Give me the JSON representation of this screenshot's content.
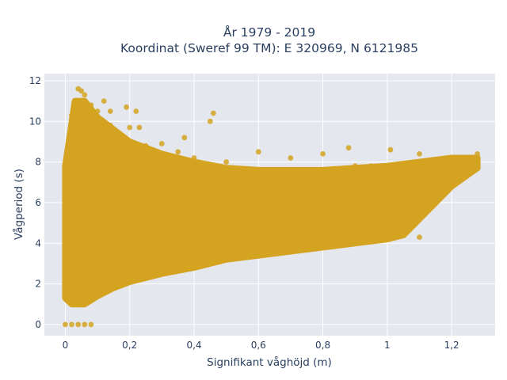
{
  "chart_data": {
    "type": "scatter",
    "title": "År 1979 - 2019",
    "subtitle": "Koordinat (Sweref 99 TM): E 320969, N 6121985",
    "xlabel": "Signifikant våghöjd (m)",
    "ylabel": "Vågperiod (s)",
    "xlim": [
      -0.065,
      1.335
    ],
    "ylim": [
      -0.55,
      12.35
    ],
    "x_ticks": [
      0,
      0.2,
      0.4,
      0.6,
      0.8,
      1,
      1.2
    ],
    "x_tick_labels": [
      "0",
      "0,2",
      "0,4",
      "0,6",
      "0,8",
      "1",
      "1,2"
    ],
    "y_ticks": [
      0,
      2,
      4,
      6,
      8,
      10,
      12
    ],
    "y_tick_labels": [
      "0",
      "2",
      "4",
      "6",
      "8",
      "10",
      "12"
    ],
    "grid": true,
    "legend": "none",
    "marker_color": "#d4a320",
    "plot_background": "#e5e7ef",
    "series": [
      {
        "points": [
          [
            0.0,
            0.0
          ],
          [
            0.02,
            0.0
          ],
          [
            0.04,
            0.0
          ],
          [
            0.06,
            0.0
          ],
          [
            0.08,
            0.0
          ],
          [
            0.0,
            1.4
          ],
          [
            0.0,
            2.0
          ],
          [
            0.0,
            3.1
          ],
          [
            0.0,
            4.1
          ],
          [
            0.0,
            5.0
          ],
          [
            0.0,
            6.2
          ],
          [
            0.0,
            7.0
          ],
          [
            0.0,
            7.7
          ],
          [
            0.02,
            1.0
          ],
          [
            0.02,
            2.5
          ],
          [
            0.02,
            4.0
          ],
          [
            0.02,
            5.5
          ],
          [
            0.02,
            7.0
          ],
          [
            0.02,
            8.5
          ],
          [
            0.02,
            9.5
          ],
          [
            0.02,
            10.3
          ],
          [
            0.04,
            1.2
          ],
          [
            0.04,
            3.0
          ],
          [
            0.04,
            5.0
          ],
          [
            0.04,
            7.0
          ],
          [
            0.04,
            9.0
          ],
          [
            0.04,
            10.5
          ],
          [
            0.04,
            11.6
          ],
          [
            0.05,
            11.5
          ],
          [
            0.06,
            11.3
          ],
          [
            0.06,
            1.1
          ],
          [
            0.06,
            3.5
          ],
          [
            0.06,
            6.0
          ],
          [
            0.06,
            8.5
          ],
          [
            0.06,
            10.0
          ],
          [
            0.08,
            1.3
          ],
          [
            0.08,
            4.0
          ],
          [
            0.08,
            6.5
          ],
          [
            0.08,
            9.5
          ],
          [
            0.08,
            10.8
          ],
          [
            0.1,
            1.6
          ],
          [
            0.1,
            3.5
          ],
          [
            0.1,
            5.5
          ],
          [
            0.1,
            7.5
          ],
          [
            0.1,
            9.5
          ],
          [
            0.1,
            10.5
          ],
          [
            0.12,
            11.0
          ],
          [
            0.14,
            1.8
          ],
          [
            0.14,
            4.0
          ],
          [
            0.14,
            6.0
          ],
          [
            0.14,
            8.0
          ],
          [
            0.14,
            9.8
          ],
          [
            0.14,
            10.5
          ],
          [
            0.16,
            2.0
          ],
          [
            0.16,
            5.0
          ],
          [
            0.16,
            7.5
          ],
          [
            0.16,
            9.3
          ],
          [
            0.19,
            10.7
          ],
          [
            0.2,
            2.2
          ],
          [
            0.2,
            4.5
          ],
          [
            0.2,
            6.5
          ],
          [
            0.2,
            8.6
          ],
          [
            0.2,
            9.7
          ],
          [
            0.22,
            10.5
          ],
          [
            0.23,
            9.7
          ],
          [
            0.25,
            2.4
          ],
          [
            0.25,
            5.0
          ],
          [
            0.25,
            7.5
          ],
          [
            0.25,
            8.8
          ],
          [
            0.3,
            2.6
          ],
          [
            0.3,
            4.0
          ],
          [
            0.3,
            6.0
          ],
          [
            0.3,
            8.0
          ],
          [
            0.3,
            8.9
          ],
          [
            0.35,
            2.8
          ],
          [
            0.35,
            5.0
          ],
          [
            0.35,
            7.0
          ],
          [
            0.35,
            8.5
          ],
          [
            0.4,
            3.0
          ],
          [
            0.4,
            4.5
          ],
          [
            0.4,
            6.5
          ],
          [
            0.4,
            8.2
          ],
          [
            0.37,
            9.2
          ],
          [
            0.45,
            10.0
          ],
          [
            0.46,
            10.4
          ],
          [
            0.45,
            3.2
          ],
          [
            0.45,
            5.5
          ],
          [
            0.45,
            7.5
          ],
          [
            0.5,
            3.3
          ],
          [
            0.5,
            5.0
          ],
          [
            0.5,
            7.0
          ],
          [
            0.5,
            8.0
          ],
          [
            0.55,
            3.5
          ],
          [
            0.55,
            4.0
          ],
          [
            0.55,
            6.0
          ],
          [
            0.55,
            7.5
          ],
          [
            0.6,
            3.6
          ],
          [
            0.6,
            5.0
          ],
          [
            0.6,
            6.8
          ],
          [
            0.6,
            7.6
          ],
          [
            0.6,
            8.5
          ],
          [
            0.65,
            3.7
          ],
          [
            0.65,
            5.5
          ],
          [
            0.65,
            7.2
          ],
          [
            0.7,
            3.8
          ],
          [
            0.7,
            4.2
          ],
          [
            0.7,
            6.0
          ],
          [
            0.7,
            7.4
          ],
          [
            0.7,
            8.2
          ],
          [
            0.75,
            3.9
          ],
          [
            0.75,
            5.5
          ],
          [
            0.75,
            7.6
          ],
          [
            0.8,
            4.0
          ],
          [
            0.8,
            5.0
          ],
          [
            0.8,
            6.5
          ],
          [
            0.8,
            7.5
          ],
          [
            0.8,
            8.4
          ],
          [
            0.85,
            4.1
          ],
          [
            0.85,
            5.8
          ],
          [
            0.85,
            7.6
          ],
          [
            0.9,
            4.2
          ],
          [
            0.9,
            5.0
          ],
          [
            0.9,
            6.5
          ],
          [
            0.9,
            7.8
          ],
          [
            0.88,
            8.7
          ],
          [
            0.95,
            4.3
          ],
          [
            0.95,
            5.7
          ],
          [
            0.95,
            7.8
          ],
          [
            1.0,
            4.4
          ],
          [
            1.0,
            5.5
          ],
          [
            1.0,
            6.7
          ],
          [
            1.0,
            7.8
          ],
          [
            1.01,
            8.6
          ],
          [
            1.05,
            4.5
          ],
          [
            1.05,
            6.0
          ],
          [
            1.05,
            7.5
          ],
          [
            1.1,
            4.3
          ],
          [
            1.1,
            6.4
          ],
          [
            1.1,
            7.6
          ],
          [
            1.1,
            8.4
          ],
          [
            1.15,
            6.8
          ],
          [
            1.15,
            7.7
          ],
          [
            1.2,
            7.0
          ],
          [
            1.2,
            8.0
          ],
          [
            1.25,
            7.6
          ],
          [
            1.25,
            8.1
          ],
          [
            1.28,
            8.4
          ]
        ]
      }
    ]
  }
}
